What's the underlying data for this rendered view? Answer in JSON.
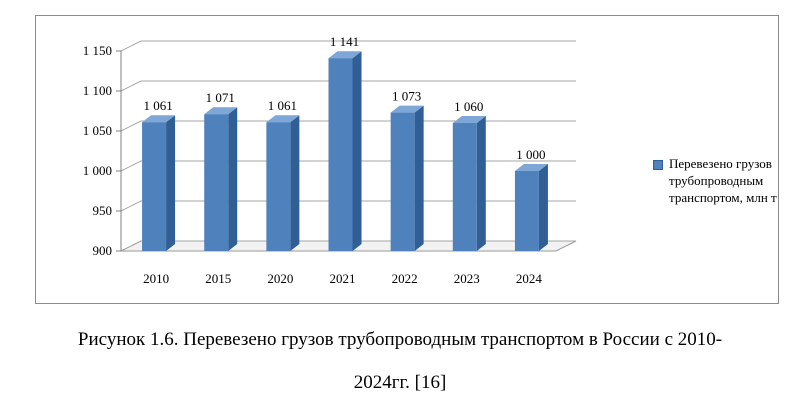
{
  "chart_data": {
    "type": "bar",
    "categories": [
      "2010",
      "2015",
      "2020",
      "2021",
      "2022",
      "2023",
      "2024"
    ],
    "series": [
      {
        "name": "Перевезено грузов трубопроводным транспортом, млн т",
        "values": [
          1061,
          1071,
          1061,
          1141,
          1073,
          1060,
          1000
        ]
      }
    ],
    "data_labels": [
      "1 061",
      "1 071",
      "1 061",
      "1 141",
      "1 073",
      "1 060",
      "1 000"
    ],
    "ylim": [
      900,
      1150
    ],
    "yticks": [
      900,
      950,
      1000,
      1050,
      1100,
      1150
    ],
    "ytick_labels": [
      "900",
      "950",
      "1 000",
      "1 050",
      "1 100",
      "1 150"
    ],
    "grid": true,
    "style": "3d-column",
    "legend_position": "right",
    "colors": {
      "bar_front": "#4f81bd",
      "bar_side": "#2f5f94",
      "bar_top": "#7ea6d6"
    }
  },
  "legend": {
    "label": "Перевезено грузов трубопроводным транспортом, млн т"
  },
  "caption": {
    "line1": "Рисунок 1.6. Перевезено грузов трубопроводным транспортом в России с 2010-",
    "line2": "2024гг. [16]"
  }
}
